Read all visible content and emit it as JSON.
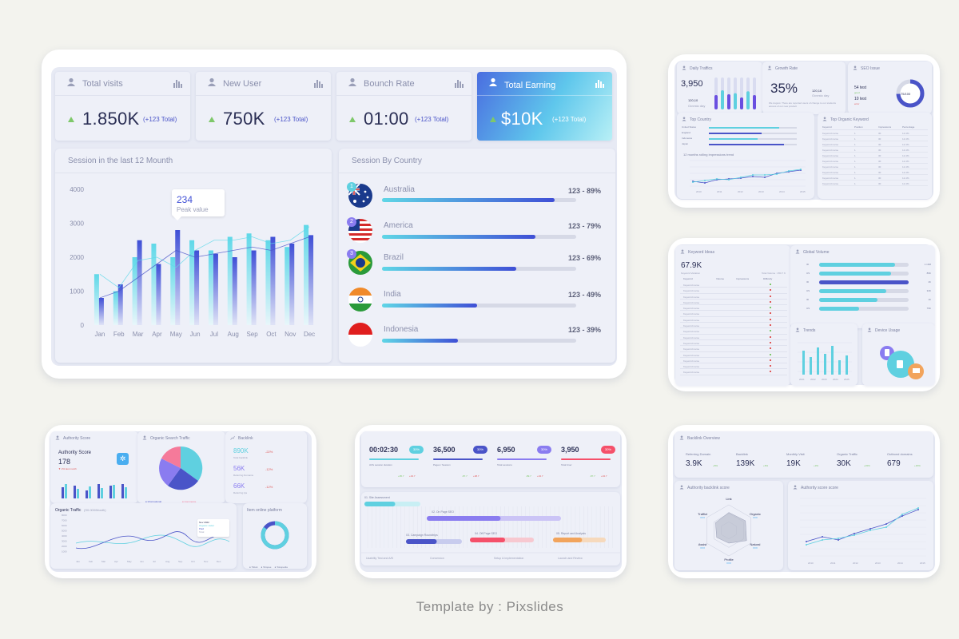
{
  "main": {
    "kpis": [
      {
        "label": "Total visits",
        "value": "1.850K",
        "delta": "(+123 Total)"
      },
      {
        "label": "New User",
        "value": "750K",
        "delta": "(+123 Total)"
      },
      {
        "label": "Bounch Rate",
        "value": "01:00",
        "delta": "(+123 Total)"
      },
      {
        "label": "Total Earning",
        "value": "$10K",
        "delta": "(+123 Total)"
      }
    ],
    "session_title": "Session in the last 12 Mounth",
    "tooltip": {
      "value": "234",
      "label": "Peak value"
    },
    "country_title": "Session By Country",
    "countries": [
      {
        "rank": "1",
        "name": "Australia",
        "value": "123 - 89%",
        "pct": 0.89
      },
      {
        "rank": "2",
        "name": "America",
        "value": "123 - 79%",
        "pct": 0.79
      },
      {
        "rank": "3",
        "name": "Brazil",
        "value": "123 - 69%",
        "pct": 0.69
      },
      {
        "name": "India",
        "value": "123 - 49%",
        "pct": 0.49
      },
      {
        "name": "Indonesia",
        "value": "123 - 39%",
        "pct": 0.39
      }
    ]
  },
  "chart_data": {
    "type": "bar",
    "categories": [
      "Jan",
      "Feb",
      "Mar",
      "Apr",
      "May",
      "Jun",
      "Jul",
      "Aug",
      "Sep",
      "Oct",
      "Nov",
      "Dec"
    ],
    "yticks": [
      "0",
      "1000",
      "2000",
      "3000",
      "4000"
    ],
    "ylim": [
      0,
      4000
    ],
    "series": [
      {
        "values": [
          1500,
          1000,
          2000,
          2400,
          2000,
          2500,
          2200,
          2600,
          2700,
          2500,
          2300,
          2950
        ]
      },
      {
        "values": [
          800,
          1200,
          2500,
          1800,
          2800,
          2200,
          2100,
          2000,
          2200,
          2600,
          2400,
          2650
        ]
      }
    ],
    "lines": [
      {
        "values": [
          1500,
          1100,
          1900,
          2000,
          1700,
          2200,
          2500,
          2500,
          2600,
          2400,
          2500,
          2900
        ]
      },
      {
        "values": [
          800,
          1000,
          1400,
          1800,
          2200,
          2000,
          2100,
          2200,
          2300,
          2200,
          2400,
          2600
        ]
      }
    ]
  },
  "thumb1": {
    "daily_traffic": {
      "title": "Daily Traffics",
      "value": "3,950",
      "sub": "120,10",
      "sub2": "Ocvrsto day"
    },
    "growth": {
      "title": "Growth Rate",
      "value": "35%",
      "sub": "120,16",
      "sub2": "Ocvrsto day",
      "note": "We August. There are reported users of change to our students access of our new product"
    },
    "seo": {
      "title": "SEO Issue",
      "center": "75/100",
      "a": "54 test",
      "a2": "good",
      "b": "10 test",
      "b2": "error"
    },
    "top_country": {
      "title": "Top Country",
      "items": [
        "United States",
        "England",
        "Indonesia",
        "Japan"
      ],
      "pct": [
        0.8,
        0.6,
        0.55,
        0.85
      ]
    },
    "impressions_title": "12 months rolling impressions trend",
    "years": [
      "2010",
      "2011",
      "2012",
      "2013",
      "2014",
      "2015"
    ],
    "keywords": {
      "title": "Top Organic Keyword",
      "headers": [
        "Keyword",
        "Position",
        "Impressions",
        "Percentage"
      ],
      "rows": [
        [
          "Keyword name",
          "1",
          "30",
          "12.4%"
        ],
        [
          "Keyword name",
          "1",
          "30",
          "12.4%"
        ],
        [
          "Keyword name",
          "1",
          "30",
          "12.4%"
        ],
        [
          "Keyword name",
          "1",
          "30",
          "12.4%"
        ],
        [
          "Keyword name",
          "1",
          "30",
          "12.4%"
        ],
        [
          "Keyword name",
          "1",
          "30",
          "12.4%"
        ],
        [
          "Keyword name",
          "1",
          "30",
          "12.4%"
        ],
        [
          "Keyword name",
          "1",
          "30",
          "12.4%"
        ],
        [
          "Keyword name",
          "1",
          "30",
          "12.4%"
        ],
        [
          "Keyword name",
          "1",
          "30",
          "12.4%"
        ]
      ]
    }
  },
  "thumb2": {
    "ideas": {
      "title": "Keyword Ideas",
      "value": "67.9K",
      "sub": "Keyword Variation",
      "sub2": "Total Volume : 450.7 K",
      "headers": [
        "Keyword",
        "Volume",
        "Impressions",
        "Difficulty"
      ],
      "rows": [
        "Keyword name",
        "Keyword name",
        "Keyword name",
        "Keyword name",
        "Keyword name",
        "Keyword name",
        "Keyword name",
        "Keyword name",
        "Keyword name",
        "Keyword name",
        "Keyword name",
        "Keyword name",
        "Keyword name",
        "Keyword name",
        "Keyword name",
        "Keyword name"
      ]
    },
    "global": {
      "title": "Global Volume",
      "codes": [
        "ID",
        "US",
        "ID",
        "US",
        "ID",
        "US"
      ],
      "vals": [
        "1.10M",
        "89K",
        "4K",
        "34K",
        "1K",
        "79K"
      ],
      "pct": [
        0.85,
        0.8,
        1.0,
        0.75,
        0.65,
        0.45
      ]
    },
    "trends": {
      "title": "Trends",
      "years": [
        "2021",
        "2022",
        "2023",
        "2024",
        "2025"
      ]
    },
    "device": {
      "title": "Device Usage"
    }
  },
  "thumb3": {
    "authority": {
      "title": "Authority Score",
      "label": "Authority Score",
      "value": "178",
      "sub": "▼ 2% last month"
    },
    "organic_search": {
      "title": "Organic Search Traffic",
      "legend": [
        "Informational",
        "Commerce",
        "Navigational",
        "Transactional"
      ]
    },
    "backlink": {
      "title": "Backlink",
      "items": [
        {
          "v": "890K",
          "l": "Total backlink",
          "d": "-22%"
        },
        {
          "v": "56K",
          "l": "Referring Domains",
          "d": "-12%"
        },
        {
          "v": "66K",
          "l": "Referring Ips",
          "d": "-12%"
        }
      ]
    },
    "organic_traffic": {
      "title": "Organic Traffic",
      "sub": "(S0.000/Month)",
      "yticks": [
        "8000",
        "7000",
        "6000",
        "5000",
        "4000",
        "3000",
        "2000",
        "1000"
      ],
      "months": [
        "Jan",
        "Feb",
        "Mar",
        "Apr",
        "May",
        "Jun",
        "Jul",
        "Aug",
        "Sep",
        "Oct",
        "Nov",
        "Dec"
      ],
      "tip": [
        "Nov 2022",
        "Organic visitor",
        "Paid",
        "Total"
      ]
    },
    "platform": {
      "title": "Item online platform",
      "legend": [
        "Tiktok",
        "Shopee",
        "Tokopedia"
      ]
    }
  },
  "thumb4": {
    "stats": [
      {
        "value": "00:02:30",
        "badge": "30%",
        "label": "AVG session duration",
        "a": "+95.7",
        "b": "+34.7"
      },
      {
        "value": "36,500",
        "badge": "30%",
        "label": "Pages / Session",
        "a": "-87.7",
        "b": "+38.7"
      },
      {
        "value": "6,950",
        "badge": "30%",
        "label": "Total sessions",
        "a": "-89.7",
        "b": "+34.7"
      },
      {
        "value": "3,950",
        "badge": "30%",
        "label": "Total User",
        "a": "-87.7",
        "b": "+34.7"
      }
    ],
    "tasks": [
      "01. Site Assessment",
      "02. On Page SEO",
      "03. Campaign Roundtrips",
      "04. Off Page SEO",
      "05. Report and Analysis"
    ],
    "phases": [
      "Usability Test and A/B",
      "Conversion",
      "Setup & Implementation",
      "Launch and Review"
    ]
  },
  "thumb5": {
    "overview_title": "Backlink Overview",
    "items": [
      {
        "label": "Referring Domain",
        "value": "3.9K",
        "d": "+8%"
      },
      {
        "label": "Backlink",
        "value": "139K",
        "d": "+6%"
      },
      {
        "label": "Monthly Visit",
        "value": "19K",
        "d": "+3%"
      },
      {
        "label": "Organic Traffic",
        "value": "30K",
        "d": "+15%"
      },
      {
        "label": "Outbond domains",
        "value": "679",
        "d": "+15%"
      }
    ],
    "radar_title": "Authority backlink score",
    "radar": [
      {
        "l": "Link",
        "v": ""
      },
      {
        "l": "Organic",
        "v": "XXX"
      },
      {
        "l": "Natural",
        "v": "XXX"
      },
      {
        "l": "Profile",
        "v": "XXX"
      },
      {
        "l": "Assist",
        "v": "XXX"
      },
      {
        "l": "Traffict",
        "v": "XXX"
      }
    ],
    "score_title": "Authority score score",
    "years": [
      "2010",
      "2011",
      "2012",
      "2013",
      "2014",
      "2015"
    ]
  },
  "credit": "Template by : Pixslides"
}
